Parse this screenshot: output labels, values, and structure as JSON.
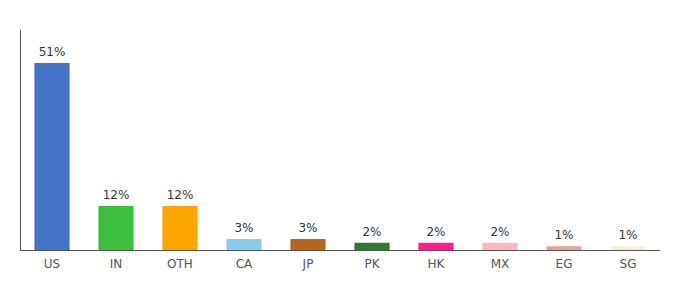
{
  "chart_data": {
    "type": "bar",
    "categories": [
      "US",
      "IN",
      "OTH",
      "CA",
      "JP",
      "PK",
      "HK",
      "MX",
      "EG",
      "SG"
    ],
    "values": [
      51,
      12,
      12,
      3,
      3,
      2,
      2,
      2,
      1,
      1
    ],
    "value_labels": [
      "51%",
      "12%",
      "12%",
      "3%",
      "3%",
      "2%",
      "2%",
      "2%",
      "1%",
      "1%"
    ],
    "data_labels": true,
    "colors": [
      "#4472c4",
      "#3dbf3d",
      "#ffa500",
      "#87ceeb",
      "#b8651a",
      "#2e7d2e",
      "#ff1c8e",
      "#ffb6c1",
      "#e8a090",
      "#f5f0d8"
    ],
    "ylim": [
      0,
      60
    ],
    "tick_labels": "x",
    "grid": false
  }
}
